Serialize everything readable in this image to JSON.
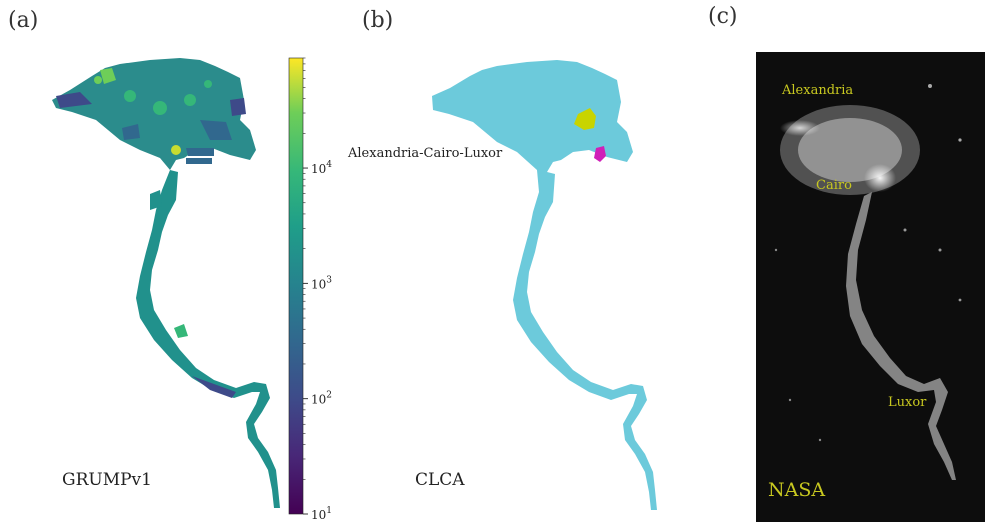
{
  "panels": {
    "a": {
      "label": "(a)",
      "dataset_name": "GRUMPv1",
      "colorbar": {
        "scale": "log",
        "range": [
          10,
          90000
        ],
        "ticks": [
          {
            "label_base": "10",
            "label_exp": "1",
            "value": 10
          },
          {
            "label_base": "10",
            "label_exp": "2",
            "value": 100
          },
          {
            "label_base": "10",
            "label_exp": "3",
            "value": 1000
          },
          {
            "label_base": "10",
            "label_exp": "4",
            "value": 10000
          }
        ],
        "colormap": "viridis"
      }
    },
    "b": {
      "label": "(b)",
      "dataset_name": "CLCA",
      "cluster_label": "Alexandria-Cairo-Luxor",
      "colors": {
        "main_cluster": "#6ccadb",
        "cluster_2": "#c8d400",
        "cluster_3": "#d020b8"
      }
    },
    "c": {
      "label": "(c)",
      "source": "NASA",
      "cities": [
        "Alexandria",
        "Cairo",
        "Luxor"
      ],
      "label_color": "#c8c820"
    }
  }
}
